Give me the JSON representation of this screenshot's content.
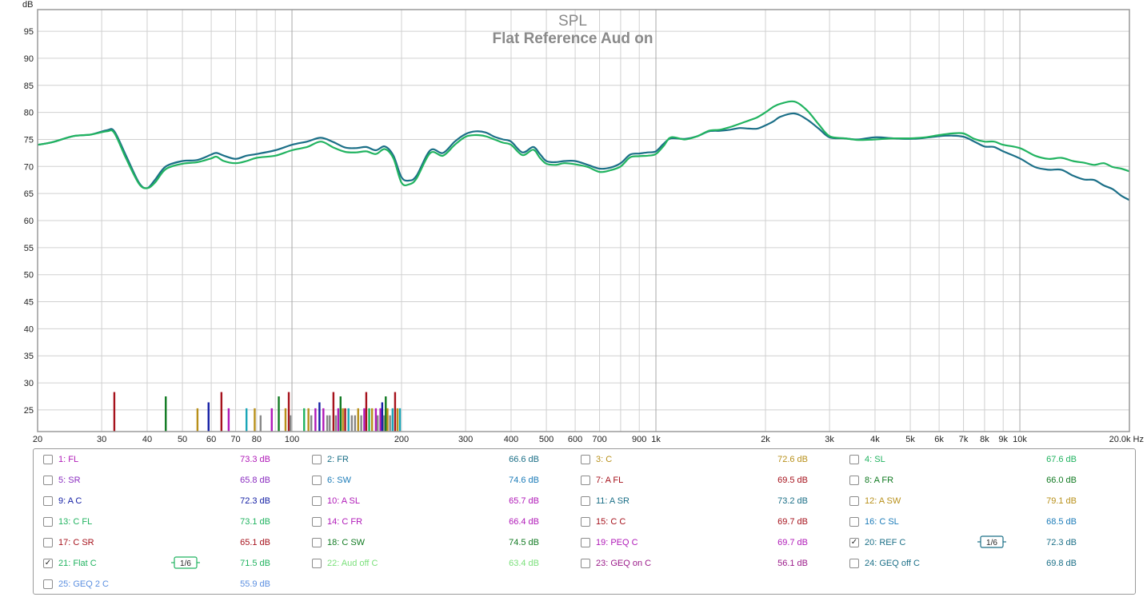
{
  "chart_data": {
    "type": "line",
    "title": "SPL",
    "subtitle": "Flat Reference Aud on",
    "ylabel": "dB",
    "xlabel": "Hz",
    "xscale": "log",
    "xlim": [
      20,
      20000
    ],
    "ylim": [
      21,
      99
    ],
    "grid": true,
    "y_ticks": [
      25,
      30,
      35,
      40,
      45,
      50,
      55,
      60,
      65,
      70,
      75,
      80,
      85,
      90,
      95
    ],
    "x_ticks": [
      {
        "v": 20,
        "t": "20"
      },
      {
        "v": 30,
        "t": "30"
      },
      {
        "v": 40,
        "t": "40"
      },
      {
        "v": 50,
        "t": "50"
      },
      {
        "v": 60,
        "t": "60"
      },
      {
        "v": 70,
        "t": "70"
      },
      {
        "v": 80,
        "t": "80"
      },
      {
        "v": 100,
        "t": "100"
      },
      {
        "v": 200,
        "t": "200"
      },
      {
        "v": 300,
        "t": "300"
      },
      {
        "v": 400,
        "t": "400"
      },
      {
        "v": 500,
        "t": "500"
      },
      {
        "v": 600,
        "t": "600"
      },
      {
        "v": 700,
        "t": "700"
      },
      {
        "v": 900,
        "t": "900"
      },
      {
        "v": 1000,
        "t": "1k"
      },
      {
        "v": 2000,
        "t": "2k"
      },
      {
        "v": 3000,
        "t": "3k"
      },
      {
        "v": 4000,
        "t": "4k"
      },
      {
        "v": 5000,
        "t": "5k"
      },
      {
        "v": 6000,
        "t": "6k"
      },
      {
        "v": 7000,
        "t": "7k"
      },
      {
        "v": 8000,
        "t": "8k"
      },
      {
        "v": 9000,
        "t": "9k"
      },
      {
        "v": 10000,
        "t": "10k"
      },
      {
        "v": 20000,
        "t": "20.0k Hz"
      }
    ],
    "series": [
      {
        "name": "20: REF C",
        "color": "#1b6f87",
        "x": [
          20,
          22,
          25,
          28,
          31,
          32.5,
          35,
          38,
          40,
          42,
          45,
          50,
          55,
          60,
          62,
          65,
          70,
          75,
          80,
          90,
          100,
          110,
          120,
          130,
          140,
          150,
          160,
          170,
          180,
          190,
          200,
          210,
          220,
          240,
          260,
          280,
          300,
          320,
          340,
          360,
          380,
          400,
          430,
          460,
          480,
          500,
          530,
          560,
          600,
          650,
          700,
          750,
          800,
          850,
          900,
          950,
          1000,
          1050,
          1100,
          1200,
          1300,
          1400,
          1500,
          1600,
          1700,
          1800,
          1900,
          2000,
          2100,
          2200,
          2400,
          2600,
          2800,
          3000,
          3300,
          3600,
          4000,
          4500,
          5000,
          5500,
          6000,
          6500,
          7000,
          7500,
          8000,
          8500,
          9000,
          10000,
          11000,
          12000,
          13000,
          14000,
          15000,
          16000,
          17000,
          18000,
          19000,
          20000
        ],
        "y": [
          74,
          74.5,
          75.6,
          75.9,
          76.7,
          76.5,
          72,
          67,
          66,
          67.5,
          70,
          71,
          71.2,
          72.2,
          72.5,
          72,
          71.4,
          72,
          72.3,
          73,
          74,
          74.6,
          75.3,
          74.5,
          73.5,
          73.4,
          73.6,
          73,
          73.7,
          72,
          68,
          67.4,
          68.3,
          73,
          72.5,
          74.6,
          76,
          76.5,
          76.3,
          75.5,
          75,
          74.6,
          72.6,
          73.6,
          72.3,
          71,
          70.8,
          71,
          71,
          70.3,
          69.6,
          69.8,
          70.6,
          72.2,
          72.4,
          72.6,
          72.8,
          74.2,
          75.2,
          75.1,
          75.6,
          76.5,
          76.6,
          76.8,
          77.1,
          77,
          77,
          77.6,
          78.3,
          79.2,
          79.8,
          78.7,
          77,
          75.4,
          75.2,
          75,
          75.4,
          75.2,
          75.1,
          75.3,
          75.6,
          75.7,
          75.5,
          74.6,
          73.7,
          73.6,
          72.8,
          71.5,
          69.9,
          69.4,
          69.4,
          68.3,
          67.6,
          67.5,
          66.5,
          65.8,
          64.6,
          63.8
        ]
      },
      {
        "name": "21: Flat C",
        "color": "#21b360",
        "x": [
          20,
          22,
          25,
          28,
          31,
          32.5,
          35,
          38,
          40,
          42,
          45,
          50,
          55,
          60,
          62,
          65,
          70,
          75,
          80,
          90,
          100,
          110,
          120,
          130,
          140,
          150,
          160,
          170,
          180,
          190,
          200,
          210,
          220,
          240,
          260,
          280,
          300,
          320,
          340,
          360,
          380,
          400,
          430,
          460,
          480,
          500,
          530,
          560,
          600,
          650,
          700,
          750,
          800,
          850,
          900,
          950,
          1000,
          1050,
          1100,
          1200,
          1300,
          1400,
          1500,
          1600,
          1700,
          1800,
          1900,
          2000,
          2100,
          2200,
          2400,
          2600,
          2800,
          3000,
          3300,
          3600,
          4000,
          4500,
          5000,
          5500,
          6000,
          6500,
          7000,
          7500,
          8000,
          8500,
          9000,
          10000,
          11000,
          12000,
          13000,
          14000,
          15000,
          16000,
          17000,
          18000,
          19000,
          20000
        ],
        "y": [
          74,
          74.5,
          75.6,
          75.9,
          76.5,
          76.2,
          71.5,
          66.8,
          66,
          67,
          69.5,
          70.5,
          70.8,
          71.5,
          71.8,
          71,
          70.6,
          71,
          71.6,
          72,
          73,
          73.6,
          74.6,
          73.5,
          72.7,
          72.6,
          72.8,
          72.3,
          73.2,
          71.5,
          67,
          66.7,
          67.8,
          72.5,
          72,
          74,
          75.5,
          75.8,
          75.6,
          75,
          74.4,
          74,
          72.1,
          73.1,
          71.6,
          70.5,
          70.3,
          70.6,
          70.4,
          69.9,
          69,
          69.3,
          70,
          71.7,
          71.9,
          72,
          72.3,
          73.8,
          75.4,
          75,
          75.6,
          76.6,
          76.8,
          77.3,
          77.9,
          78.5,
          79.1,
          80,
          81,
          81.6,
          82,
          80.4,
          77.8,
          75.6,
          75.2,
          74.9,
          75,
          75.2,
          75.2,
          75.4,
          75.8,
          76.1,
          76.1,
          75.1,
          74.6,
          74.6,
          74,
          73.4,
          72,
          71.4,
          71.6,
          71,
          70.7,
          70.3,
          70.6,
          69.9,
          69.6,
          69.1
        ]
      }
    ],
    "markers": [
      {
        "f": 32.5,
        "h": 28.3,
        "c": "#a6121c"
      },
      {
        "f": 45,
        "h": 27.5,
        "c": "#117a22"
      },
      {
        "f": 55,
        "h": 25.3,
        "c": "#b8901a"
      },
      {
        "f": 59,
        "h": 26.4,
        "c": "#1520a5"
      },
      {
        "f": 64,
        "h": 28.3,
        "c": "#a6121c"
      },
      {
        "f": 67,
        "h": 25.3,
        "c": "#b01ab8"
      },
      {
        "f": 75,
        "h": 25.3,
        "c": "#1aa6b8"
      },
      {
        "f": 79,
        "h": 25.3,
        "c": "#b8901a"
      },
      {
        "f": 82,
        "h": 24,
        "c": "#888888"
      },
      {
        "f": 88,
        "h": 25.3,
        "c": "#b01ab8"
      },
      {
        "f": 92,
        "h": 27.5,
        "c": "#117a22"
      },
      {
        "f": 96,
        "h": 25.3,
        "c": "#b8901a"
      },
      {
        "f": 98,
        "h": 28.3,
        "c": "#a6121c"
      },
      {
        "f": 99,
        "h": 24,
        "c": "#888888"
      },
      {
        "f": 108,
        "h": 25.3,
        "c": "#21b360"
      },
      {
        "f": 111,
        "h": 25.3,
        "c": "#b8901a"
      },
      {
        "f": 113,
        "h": 24,
        "c": "#888888"
      },
      {
        "f": 116,
        "h": 25.3,
        "c": "#b01ab8"
      },
      {
        "f": 119,
        "h": 26.4,
        "c": "#1520a5"
      },
      {
        "f": 122,
        "h": 25.3,
        "c": "#b01ab8"
      },
      {
        "f": 125,
        "h": 24,
        "c": "#888888"
      },
      {
        "f": 127,
        "h": 24,
        "c": "#888888"
      },
      {
        "f": 130,
        "h": 28.3,
        "c": "#a6121c"
      },
      {
        "f": 132,
        "h": 24,
        "c": "#888888"
      },
      {
        "f": 134,
        "h": 25.3,
        "c": "#b01ab8"
      },
      {
        "f": 136,
        "h": 27.5,
        "c": "#117a22"
      },
      {
        "f": 138,
        "h": 25.3,
        "c": "#b8901a"
      },
      {
        "f": 140,
        "h": 25.3,
        "c": "#a6121c"
      },
      {
        "f": 143,
        "h": 25.3,
        "c": "#1aa6b8"
      },
      {
        "f": 146,
        "h": 24,
        "c": "#888888"
      },
      {
        "f": 149,
        "h": 24,
        "c": "#888888"
      },
      {
        "f": 152,
        "h": 25.3,
        "c": "#b8901a"
      },
      {
        "f": 155,
        "h": 24,
        "c": "#888888"
      },
      {
        "f": 158,
        "h": 25.3,
        "c": "#b01ab8"
      },
      {
        "f": 160,
        "h": 28.3,
        "c": "#a6121c"
      },
      {
        "f": 163,
        "h": 25.3,
        "c": "#21b360"
      },
      {
        "f": 166,
        "h": 25.3,
        "c": "#b8901a"
      },
      {
        "f": 170,
        "h": 25.3,
        "c": "#b01ab8"
      },
      {
        "f": 172,
        "h": 24,
        "c": "#888888"
      },
      {
        "f": 175,
        "h": 25.3,
        "c": "#b01ab8"
      },
      {
        "f": 177,
        "h": 26.4,
        "c": "#1520a5"
      },
      {
        "f": 179,
        "h": 24,
        "c": "#888888"
      },
      {
        "f": 181,
        "h": 27.5,
        "c": "#117a22"
      },
      {
        "f": 183,
        "h": 25.3,
        "c": "#b8901a"
      },
      {
        "f": 186,
        "h": 24,
        "c": "#888888"
      },
      {
        "f": 189,
        "h": 25.3,
        "c": "#1aa6b8"
      },
      {
        "f": 192,
        "h": 28.3,
        "c": "#a6121c"
      },
      {
        "f": 195,
        "h": 25.3,
        "c": "#b8901a"
      },
      {
        "f": 198,
        "h": 25.3,
        "c": "#1aa6b8"
      }
    ]
  },
  "legend": [
    {
      "label": "1: FL",
      "value": "73.3 dB",
      "checked": false,
      "color": "#b01ab8"
    },
    {
      "label": "2: FR",
      "value": "66.6 dB",
      "checked": false,
      "color": "#1b6f87"
    },
    {
      "label": "3: C",
      "value": "72.6 dB",
      "checked": false,
      "color": "#b8901a"
    },
    {
      "label": "4: SL",
      "value": "67.6 dB",
      "checked": false,
      "color": "#21b360"
    },
    {
      "label": "5: SR",
      "value": "65.8 dB",
      "checked": false,
      "color": "#8a2cc0"
    },
    {
      "label": "6: SW",
      "value": "74.6 dB",
      "checked": false,
      "color": "#1b7bb8"
    },
    {
      "label": "7: A FL",
      "value": "69.5 dB",
      "checked": false,
      "color": "#a6121c"
    },
    {
      "label": "8: A FR",
      "value": "66.0 dB",
      "checked": false,
      "color": "#117a22"
    },
    {
      "label": "9: A C",
      "value": "72.3 dB",
      "checked": false,
      "color": "#1520a5"
    },
    {
      "label": "10: A SL",
      "value": "65.7 dB",
      "checked": false,
      "color": "#b01ab8"
    },
    {
      "label": "11: A SR",
      "value": "73.2 dB",
      "checked": false,
      "color": "#1b6f87"
    },
    {
      "label": "12: A SW",
      "value": "79.1 dB",
      "checked": false,
      "color": "#b8901a"
    },
    {
      "label": "13: C FL",
      "value": "73.1 dB",
      "checked": false,
      "color": "#21b360"
    },
    {
      "label": "14: C FR",
      "value": "66.4 dB",
      "checked": false,
      "color": "#b01ab8"
    },
    {
      "label": "15: C C",
      "value": "69.7 dB",
      "checked": false,
      "color": "#a6121c"
    },
    {
      "label": "16: C SL",
      "value": "68.5 dB",
      "checked": false,
      "color": "#1b7bb8"
    },
    {
      "label": "17: C SR",
      "value": "65.1 dB",
      "checked": false,
      "color": "#a6121c"
    },
    {
      "label": "18: C SW",
      "value": "74.5 dB",
      "checked": false,
      "color": "#117a22"
    },
    {
      "label": "19: PEQ C",
      "value": "69.7 dB",
      "checked": false,
      "color": "#b01ab8"
    },
    {
      "label": "20: REF C",
      "value": "72.3 dB",
      "checked": true,
      "color": "#1b6f87",
      "smoothing": "1/6"
    },
    {
      "label": "21: Flat C",
      "value": "71.5 dB",
      "checked": true,
      "color": "#21b360",
      "smoothing": "1/6"
    },
    {
      "label": "22: Aud off C",
      "value": "63.4 dB",
      "checked": false,
      "color": "#7be07b"
    },
    {
      "label": "23: GEQ on C",
      "value": "56.1 dB",
      "checked": false,
      "color": "#9b1b8a"
    },
    {
      "label": "24: GEQ off C",
      "value": "69.8 dB",
      "checked": false,
      "color": "#1b6f87"
    },
    {
      "label": "25: GEQ 2 C",
      "value": "55.9 dB",
      "checked": false,
      "color": "#5b8fe0"
    }
  ]
}
